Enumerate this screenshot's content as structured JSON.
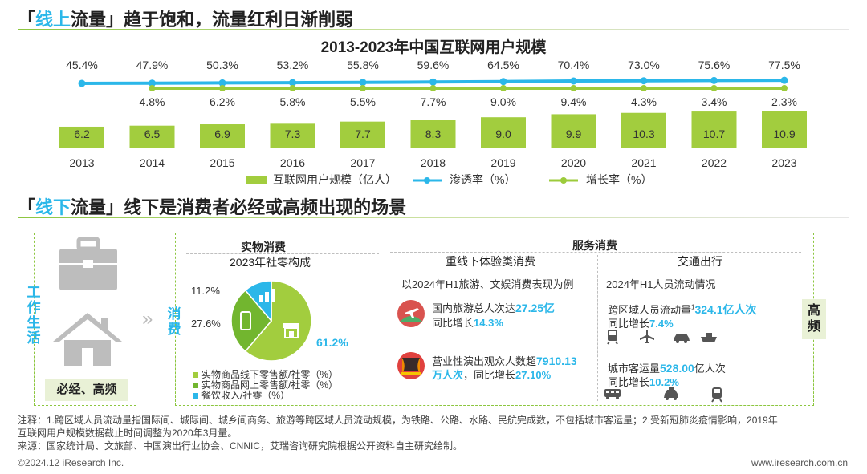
{
  "section1": {
    "bracket_open": "「",
    "highlight": "线上",
    "highlight_rest": "流量",
    "bracket_close": "」",
    "subtitle": "趋于饱和，流量红利日渐削弱"
  },
  "section2": {
    "bracket_open": "「",
    "highlight": "线下",
    "highlight_rest": "流量",
    "bracket_close": "」",
    "subtitle": "线下是消费者必经或高频出现的场景"
  },
  "chart_data": {
    "type": "bar",
    "title": "2013-2023年中国互联网用户规模",
    "categories": [
      "2013",
      "2014",
      "2015",
      "2016",
      "2017",
      "2018",
      "2019",
      "2020",
      "2021",
      "2022",
      "2023"
    ],
    "series": [
      {
        "name": "互联网用户规模（亿人）",
        "kind": "bar",
        "values": [
          6.2,
          6.5,
          6.9,
          7.3,
          7.7,
          8.3,
          9.0,
          9.9,
          10.3,
          10.7,
          10.9
        ],
        "labels": [
          "6.2",
          "6.5",
          "6.9",
          "7.3",
          "7.7",
          "8.3",
          "9.0",
          "9.9",
          "10.3",
          "10.7",
          "10.9"
        ]
      },
      {
        "name": "渗透率（%）",
        "kind": "line",
        "values": [
          45.4,
          47.9,
          50.3,
          53.2,
          55.8,
          59.6,
          64.5,
          70.4,
          73.0,
          75.6,
          77.5
        ],
        "labels": [
          "45.4%",
          "47.9%",
          "50.3%",
          "53.2%",
          "55.8%",
          "59.6%",
          "64.5%",
          "70.4%",
          "73.0%",
          "75.6%",
          "77.5%"
        ]
      },
      {
        "name": "增长率（%）",
        "kind": "line",
        "values": [
          null,
          4.8,
          6.2,
          5.8,
          5.5,
          7.7,
          9.0,
          9.4,
          4.3,
          3.4,
          2.3
        ],
        "labels": [
          "",
          "4.8%",
          "6.2%",
          "5.8%",
          "5.5%",
          "7.7%",
          "9.0%",
          "9.4%",
          "4.3%",
          "3.4%",
          "2.3%"
        ]
      }
    ],
    "colors": {
      "bar": "#a2cd3e",
      "penetration": "#2bb7e9",
      "growth": "#9ccb3b"
    }
  },
  "pie_data": {
    "type": "pie",
    "header": "实物消费",
    "title": "2023年社零构成",
    "values": [
      61.2,
      27.6,
      11.2
    ],
    "labels": [
      "61.2%",
      "27.6%",
      "11.2%"
    ],
    "legend": [
      "实物商品线下零售额/社零（%）",
      "实物商品网上零售额/社零（%）",
      "餐饮收入/社零（%）"
    ],
    "colors": [
      "#a2cd3e",
      "#72b62f",
      "#2bb7e9"
    ]
  },
  "left_panel": {
    "vertical_label": "工作生活",
    "caption": "必经、高频"
  },
  "consume_label": "消费",
  "arrow": "»",
  "service": {
    "header": "服务消费",
    "exp": {
      "header": "重线下体验类消费",
      "sub": "以2024年H1旅游、文娱消费表现为例",
      "item1_prefix": "国内旅游总人次达",
      "item1_value": "27.25亿",
      "item1_growth_label": "同比增长",
      "item1_growth": "14.3%",
      "item2_prefix": "营业性演出观众人数超",
      "item2_value_a": "7910.13",
      "item2_value_b": "万人次",
      "item2_growth_label": "，同比增长",
      "item2_growth": "27.10%"
    },
    "transport": {
      "header": "交通出行",
      "sub": "2024年H1人员流动情况",
      "line1_prefix": "跨区域人员流动量",
      "line1_sup": "1",
      "line1_value": "324.1亿人次",
      "line1_growth_label": "同比增长",
      "line1_growth": "7.4%",
      "line2_prefix": "城市客运量",
      "line2_value": "528.00",
      "line2_unit": "亿人次",
      "line2_growth_label": "同比增长",
      "line2_growth": "10.2%"
    }
  },
  "high_freq_label": "高频",
  "notes": {
    "line1": "注释：1.跨区域人员流动量指国际间、城际间、城乡间商务、旅游等跨区域人员流动规模，为铁路、公路、水路、民航完成数，不包括城市客运量；2.受新冠肺炎疫情影响，2019年",
    "line2": "互联网用户规模数据截止时间调整为2020年3月量。",
    "line3": "来源：国家统计局、文旅部、中国演出行业协会、CNNIC，艾瑞咨询研究院根据公开资料自主研究绘制。"
  },
  "footer": {
    "left": "©2024.12 iResearch Inc.",
    "right": "www.iresearch.com.cn"
  }
}
